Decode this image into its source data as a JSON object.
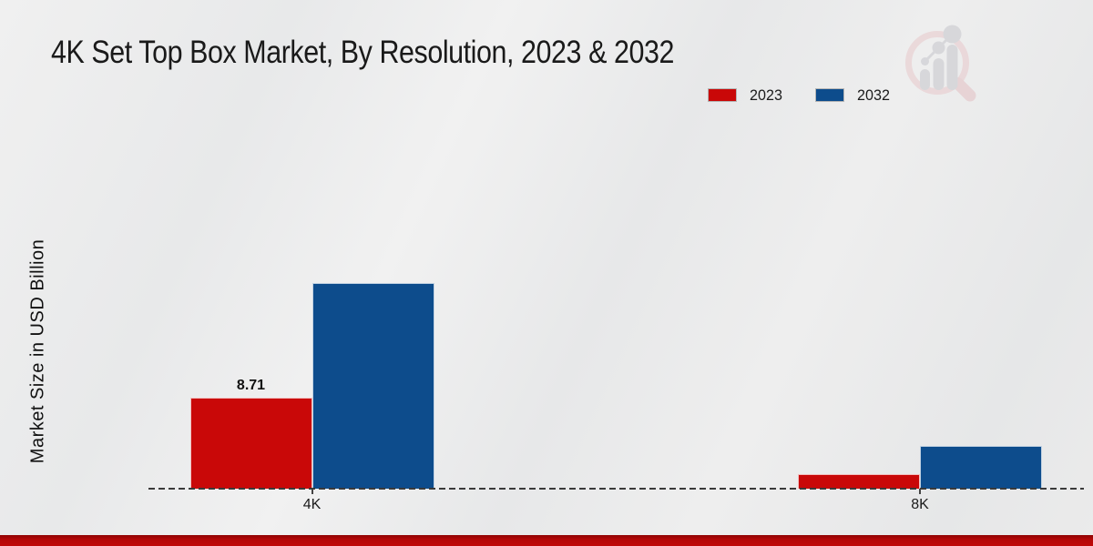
{
  "title": "4K Set Top Box Market, By Resolution, 2023 & 2032",
  "colors": {
    "bar_2023": "#c90808",
    "bar_2032": "#0d4c8c",
    "footer_accent": "#b40707",
    "background": "#ebebeb",
    "baseline": "#3a3a3a",
    "text": "#1b1b1b",
    "logo_pink": "#e8c8cb",
    "logo_gray": "#c6c6cc"
  },
  "icons": {
    "watermark": "magnifier-bar-chart-logo"
  },
  "legend": {
    "position": "top-right",
    "items": [
      {
        "label": "2023",
        "color": "#c90808"
      },
      {
        "label": "2032",
        "color": "#0d4c8c"
      }
    ]
  },
  "chart_data": {
    "type": "bar",
    "title": "4K Set Top Box Market, By Resolution, 2023 & 2032",
    "categories": [
      "4K",
      "8K"
    ],
    "series": [
      {
        "name": "2023",
        "color": "#c90808",
        "values": [
          8.71,
          1.4
        ]
      },
      {
        "name": "2032",
        "color": "#0d4c8c",
        "values": [
          19.7,
          4.1
        ]
      }
    ],
    "value_labels": [
      {
        "series": "2023",
        "category": "4K",
        "text": "8.71"
      }
    ],
    "xlabel": "",
    "ylabel": "Market Size in USD Billion",
    "ylim": [
      0,
      22
    ],
    "grid": false,
    "y_axis_ticks_visible": false,
    "baseline_style": "dashed",
    "legend_position": "upper right"
  }
}
